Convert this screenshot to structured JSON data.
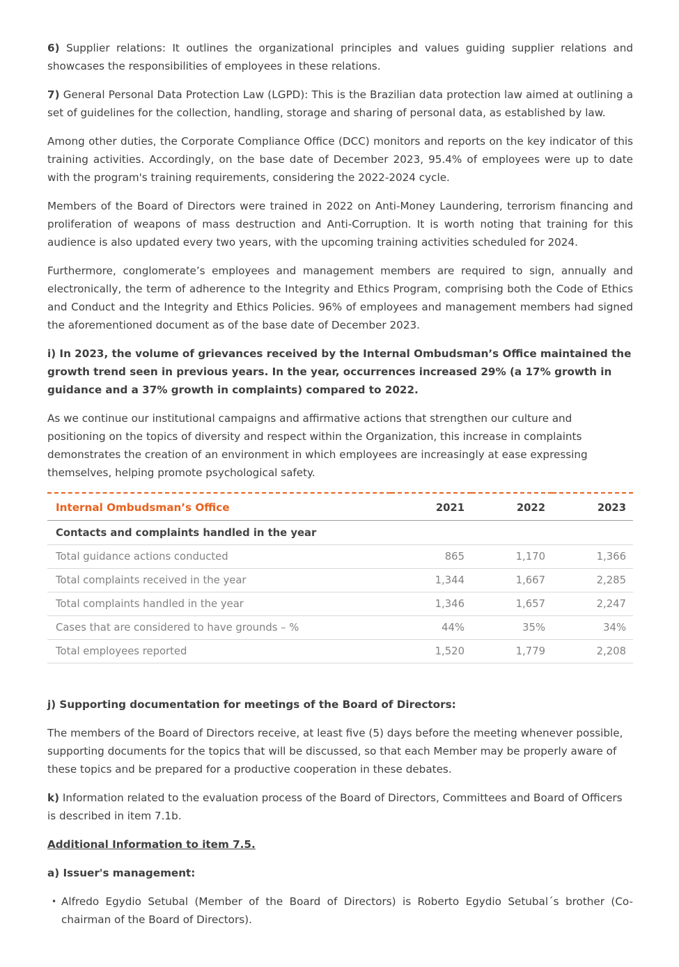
{
  "colors": {
    "accent_orange": "#E8611C",
    "body_text": "#3F3F3F",
    "table_text": "#828282"
  },
  "content": {
    "item6": {
      "prefix": "6)",
      "text": "Supplier relations: It outlines the organizational principles and values guiding supplier relations and showcases the responsibilities of employees in these relations."
    },
    "item7": {
      "prefix": "7)",
      "text": "General Personal Data Protection Law (LGPD): This is the Brazilian data protection law aimed at outlining a set of guidelines for the collection, handling, storage and sharing of personal data, as established by law."
    },
    "para_compliance": "Among other duties, the Corporate Compliance Office (DCC) monitors and reports on the key indicator of this training activities. Accordingly, on the base date of December 2023, 95.4% of employees were up to date with the program's training requirements, considering the 2022-2024 cycle.",
    "para_board_training": "Members of the Board of Directors were trained in 2022 on Anti-Money Laundering, terrorism financing and proliferation of weapons of mass destruction and Anti-Corruption. It is worth noting that training for this audience is also updated every two years, with the upcoming training activities scheduled for 2024.",
    "para_adherence": "Furthermore, conglomerate’s employees and management members are required to sign, annually and electronically, the term of adherence to the Integrity and Ethics Program, comprising both the Code of Ethics and Conduct and the Integrity and Ethics Policies. 96% of employees and management members had signed the aforementioned document as of the base date of December 2023.",
    "item_i": "i) In 2023, the volume of grievances received by the Internal Ombudsman’s Office maintained the growth trend seen in previous years. In the year, occurrences increased 29% (a 17% growth in guidance and a 37% growth in complaints) compared to 2022.",
    "para_campaigns": "As we continue our institutional campaigns and affirmative actions that strengthen our culture and positioning on the topics of diversity and respect within the Organization, this increase in complaints demonstrates the creation of an environment in which employees are increasingly at ease expressing themselves, helping promote psychological safety.",
    "item_j": "j) Supporting documentation for meetings of the Board of Directors:",
    "para_board_docs": "The members of the Board of Directors receive, at least five (5) days before the meeting whenever possible, supporting documents for the topics that will be discussed, so that each Member may be properly aware of these topics and be prepared for a productive cooperation in these debates.",
    "item_k": {
      "prefix": "k)",
      "text": "Information related to the evaluation process of the Board of Directors, Committees and Board of Officers is described in item 7.1b."
    },
    "additional_info_heading": "Additional Information to item 7.5.",
    "item_a": "a) Issuer's management:",
    "bullet_marker": "•",
    "bullet_text": "Alfredo Egydio Setubal (Member of the Board of Directors) is Roberto Egydio Setubal´s brother (Co-chairman of the Board of Directors)."
  },
  "table": {
    "title": "Internal Ombudsman’s Office",
    "year_columns": [
      "2021",
      "2022",
      "2023"
    ],
    "section_header": "Contacts and complaints handled in the year",
    "rows": [
      {
        "label": "Total guidance actions conducted",
        "values": [
          "865",
          "1,170",
          "1,366"
        ]
      },
      {
        "label": "Total complaints received in the year",
        "values": [
          "1,344",
          "1,667",
          "2,285"
        ]
      },
      {
        "label": "Total complaints handled in the year",
        "values": [
          "1,346",
          "1,657",
          "2,247"
        ]
      },
      {
        "label": "Cases that are considered to have grounds – %",
        "values": [
          "44%",
          "35%",
          "34%"
        ]
      },
      {
        "label": "Total employees reported",
        "values": [
          "1,520",
          "1,779",
          "2,208"
        ]
      }
    ]
  }
}
